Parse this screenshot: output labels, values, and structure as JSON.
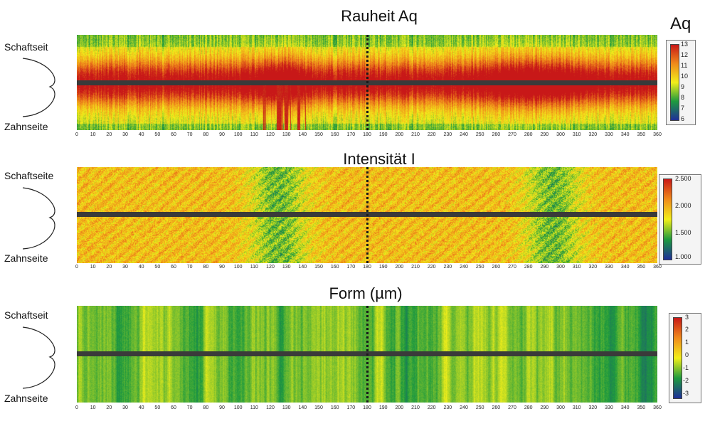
{
  "panels": [
    {
      "title": "Rauheit Aq",
      "legend_title": "Aq",
      "side_top": "Schaftseit",
      "side_bottom": "Zahnseite",
      "colorbar_labels": [
        "13",
        "12",
        "11",
        "10",
        "9",
        "8",
        "7",
        "6"
      ]
    },
    {
      "title": "Intensität I",
      "side_top": "Schaftseite",
      "side_bottom": "Zahnseite",
      "colorbar_labels": [
        "2.500",
        "2.000",
        "1.500",
        "1.000"
      ]
    },
    {
      "title": "Form (µm)",
      "side_top": "Schaftseit",
      "side_bottom": "Zahnseite",
      "colorbar_labels": [
        "3",
        "2",
        "1",
        "0",
        "-1",
        "-2",
        "-3"
      ]
    }
  ],
  "x_ticks": [
    "0",
    "10",
    "20",
    "30",
    "40",
    "50",
    "60",
    "70",
    "80",
    "90",
    "100",
    "110",
    "120",
    "130",
    "140",
    "150",
    "160",
    "170",
    "180",
    "190",
    "200",
    "210",
    "220",
    "230",
    "240",
    "250",
    "260",
    "270",
    "280",
    "290",
    "300",
    "310",
    "320",
    "330",
    "340",
    "350",
    "360"
  ],
  "chart_data": [
    {
      "type": "heatmap",
      "title": "Rauheit Aq",
      "legend_title": "Aq",
      "x_range": [
        0,
        360
      ],
      "colorbar_range": [
        6,
        13
      ],
      "colormap": [
        "#1f2f9a",
        "#1e9a3e",
        "#f2ef1a",
        "#f08a1a",
        "#c81818"
      ],
      "marker_x": 180,
      "hot_zones_x": [
        [
          110,
          140
        ],
        [
          255,
          315
        ]
      ]
    },
    {
      "type": "heatmap",
      "title": "Intensität I",
      "x_range": [
        0,
        360
      ],
      "colorbar_range": [
        1000,
        2500
      ],
      "colormap": [
        "#1f2f9a",
        "#1e9a3e",
        "#f2ef1a",
        "#f08a1a",
        "#c81818"
      ],
      "marker_x": 180,
      "low_zones_x": [
        [
          110,
          140
        ],
        [
          280,
          310
        ]
      ]
    },
    {
      "type": "heatmap",
      "title": "Form (µm)",
      "x_range": [
        0,
        360
      ],
      "colorbar_range": [
        -3,
        3
      ],
      "colormap": [
        "#1f2f9a",
        "#1e9a3e",
        "#f2ef1a",
        "#f08a1a",
        "#c81818"
      ],
      "marker_x": 180
    }
  ]
}
